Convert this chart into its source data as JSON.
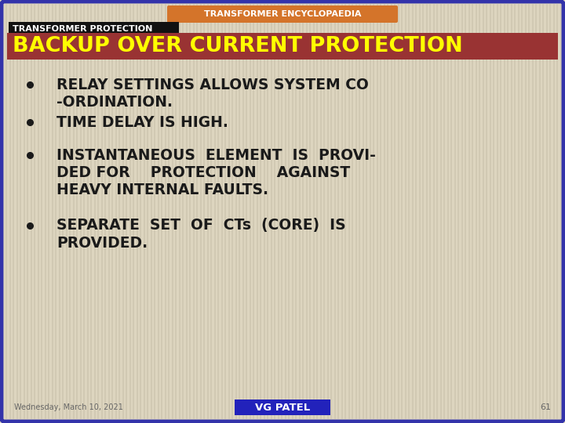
{
  "bg_color": "#ddd5bf",
  "stripe_color": "#cec6b0",
  "border_color": "#3333aa",
  "top_label": "TRANSFORMER ENCYCLOPAEDIA",
  "top_label_bg": "#d4742a",
  "top_label_color": "#ffffff",
  "top_label2": "TRANSFORMER PROTECTION",
  "top_label2_bg": "#111111",
  "top_label2_color": "#ffffff",
  "title": "BACKUP OVER CURRENT PROTECTION",
  "title_bg": "#993333",
  "title_color": "#ffff00",
  "bullet_color": "#1a1a1a",
  "bullet1_line1": "RELAY SETTINGS ALLOWS SYSTEM CO",
  "bullet1_line2": "-ORDINATION.",
  "bullet2_line1": "TIME DELAY IS HIGH.",
  "bullet3_line1": "INSTANTANEOUS  ELEMENT  IS  PROVI-",
  "bullet3_line2": "DED FOR    PROTECTION    AGAINST",
  "bullet3_line3": "HEAVY INTERNAL FAULTS.",
  "bullet4_line1": "SEPARATE  SET  OF  CTs  (CORE)  IS",
  "bullet4_line2": "PROVIDED.",
  "footer_date": "Wednesday, March 10, 2021",
  "footer_label": "VG PATEL",
  "footer_label_bg": "#2222bb",
  "footer_label_color": "#ffffff",
  "footer_num": "61",
  "footer_color": "#666666"
}
